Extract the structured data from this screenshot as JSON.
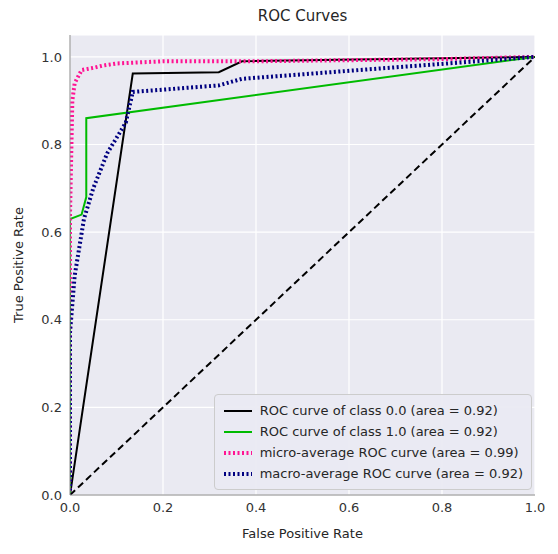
{
  "chart_data": {
    "type": "line",
    "title": "ROC Curves",
    "x_label": "False Positive Rate",
    "y_label": "True Positive Rate",
    "xlim": [
      0,
      1
    ],
    "ylim": [
      0,
      1.05
    ],
    "xticks": [
      {
        "value": 0,
        "label": "0.0"
      },
      0.2,
      0.4,
      0.6,
      0.8,
      {
        "value": 1,
        "label": "1.0"
      }
    ],
    "yticks": [
      {
        "value": 0,
        "label": "0.0"
      },
      0.2,
      0.4,
      0.6,
      0.8,
      {
        "value": 1,
        "label": "1.0"
      }
    ],
    "grid": true,
    "legend": "lower right",
    "series": [
      {
        "name": "ROC curve of class 0.0 (area = 0.92)",
        "color": "#000000",
        "line_style": "solid",
        "x": [
          0,
          0.135,
          0.32,
          0.37,
          1
        ],
        "values": [
          0,
          0.962,
          0.965,
          0.99,
          1
        ]
      },
      {
        "name": "ROC curve of class 1.0 (area = 0.92)",
        "color": "#00bb00",
        "line_style": "solid",
        "x": [
          0,
          0,
          0.025,
          0.035,
          0.035,
          1
        ],
        "values": [
          0,
          0.63,
          0.64,
          0.68,
          0.86,
          1
        ]
      },
      {
        "name": "micro-average ROC curve (area = 0.99)",
        "color": "#ff1493",
        "line_style": "dotted",
        "x": [
          0,
          0,
          0.005,
          0.01,
          0.02,
          0.025,
          0.05,
          0.07,
          0.1,
          0.2,
          0.4,
          0.8,
          1
        ],
        "values": [
          0,
          0.64,
          0.9,
          0.94,
          0.96,
          0.97,
          0.975,
          0.98,
          0.985,
          0.99,
          0.99,
          0.995,
          1
        ]
      },
      {
        "name": "macro-average ROC curve (area = 0.92)",
        "color": "#000080",
        "line_style": "dotted",
        "x": [
          0,
          0,
          0.01,
          0.03,
          0.05,
          0.08,
          0.12,
          0.135,
          0.32,
          0.37,
          1
        ],
        "values": [
          0,
          0.37,
          0.5,
          0.63,
          0.7,
          0.78,
          0.85,
          0.92,
          0.935,
          0.95,
          1
        ]
      },
      {
        "color": "#000000",
        "line_style": "dashed",
        "x": [
          0,
          1
        ],
        "values": [
          0,
          1
        ]
      }
    ]
  }
}
